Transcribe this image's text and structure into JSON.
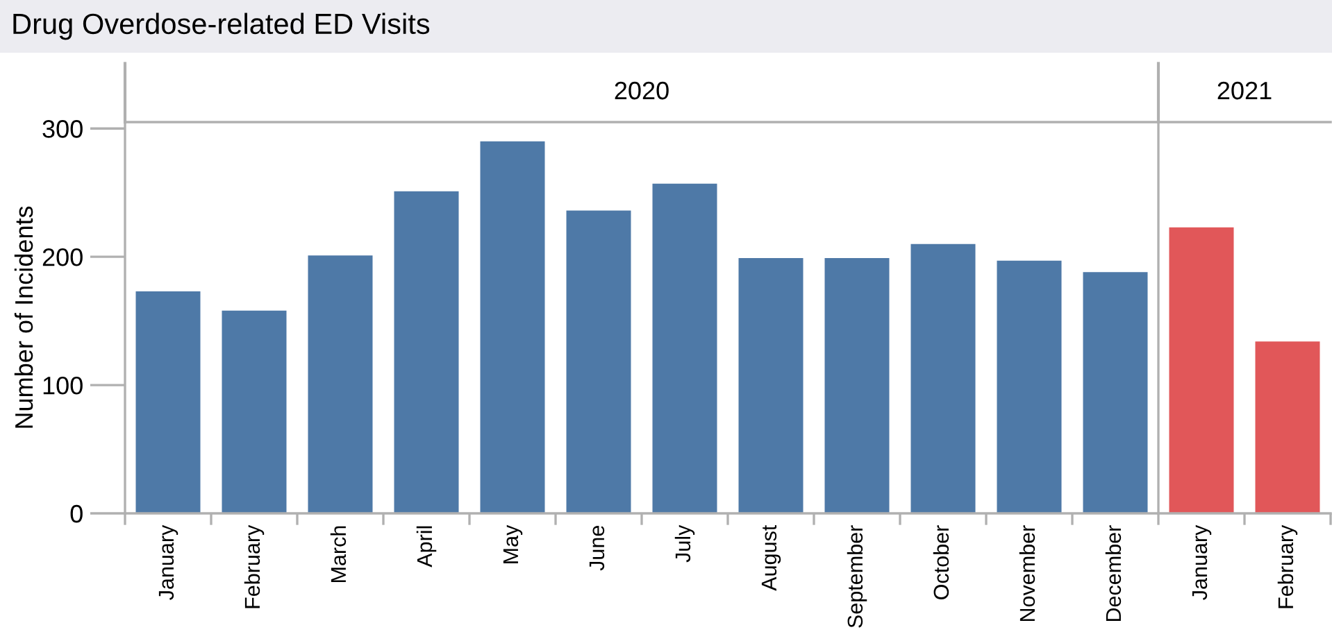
{
  "chart_data": [
    {
      "type": "bar",
      "title": "Drug Overdose-related ED Visits",
      "subtitle": "2020",
      "ylabel": "Number of Incidents",
      "categories": [
        "January",
        "February",
        "March",
        "April",
        "May",
        "June",
        "July",
        "August",
        "September",
        "October",
        "November",
        "December"
      ],
      "series": [
        {
          "color": "#4e79a7",
          "values": [
            173,
            158,
            201,
            251,
            290,
            236,
            257,
            199,
            199,
            210,
            197,
            188
          ]
        }
      ],
      "ylim": [
        0,
        305
      ],
      "yticks": [
        0,
        100,
        200,
        300
      ],
      "grid": false
    },
    {
      "type": "bar",
      "subtitle": "2021",
      "categories": [
        "January",
        "February"
      ],
      "series": [
        {
          "color": "#e15759",
          "values": [
            223,
            134
          ]
        }
      ],
      "ylim": [
        0,
        305
      ],
      "tick_labels": "x",
      "grid": false
    }
  ]
}
